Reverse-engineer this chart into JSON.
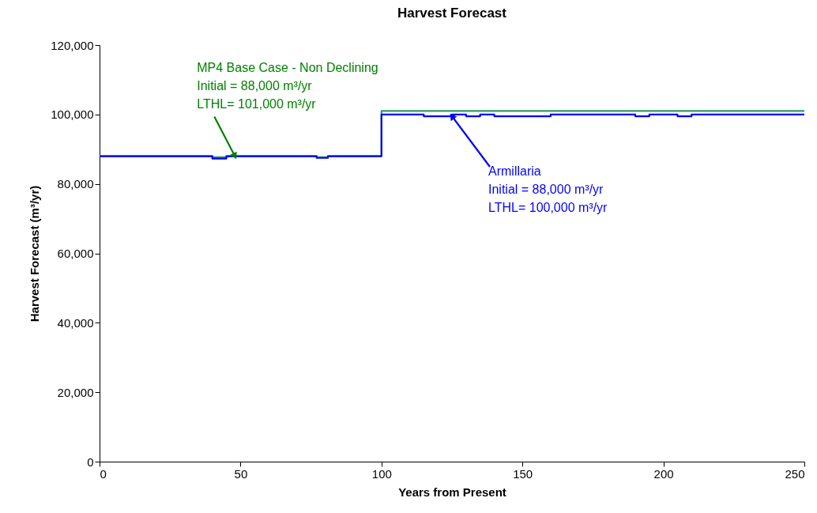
{
  "chart_data": {
    "type": "step",
    "title": "Harvest Forecast",
    "xlabel": "Years from Present",
    "ylabel": "Harvest Forecast (m³/yr)",
    "xlim": [
      0,
      250
    ],
    "xticks": [
      0,
      50,
      100,
      150,
      200,
      250
    ],
    "ylim": [
      0,
      120000
    ],
    "yticks": [
      {
        "value": 0,
        "label": "0"
      },
      {
        "value": 20000,
        "label": "20,000"
      },
      {
        "value": 40000,
        "label": "40,000"
      },
      {
        "value": 60000,
        "label": "60,000"
      },
      {
        "value": 80000,
        "label": "80,000"
      },
      {
        "value": 100000,
        "label": "100,000"
      },
      {
        "value": 120000,
        "label": "120,000"
      }
    ],
    "grid": false,
    "series": [
      {
        "color": "#339966",
        "x": [
          0,
          40,
          45,
          77,
          81,
          100,
          250
        ],
        "values": [
          88000,
          87700,
          88000,
          87700,
          88000,
          101000,
          101000
        ]
      },
      {
        "color": "#0000ff",
        "x": [
          0,
          40,
          45,
          77,
          81,
          100,
          115,
          125,
          130,
          135,
          140,
          160,
          190,
          195,
          205,
          210,
          250
        ],
        "values": [
          88000,
          87300,
          88000,
          87500,
          88000,
          100000,
          99500,
          100000,
          99500,
          100000,
          99500,
          100000,
          99500,
          100000,
          99500,
          100000,
          100000
        ]
      }
    ],
    "annotations": [
      {
        "text": "MP4 Base Case - Non Declining\nInitial = 88,000 m³/yr\nLTHL= 101,000 m³/yr",
        "x": 48,
        "y": 88000
      },
      {
        "text": "Armillaria\nInitial = 88,000 m³/yr\nLTHL= 100,000 m³/yr",
        "x": 125,
        "y": 99500
      }
    ]
  }
}
